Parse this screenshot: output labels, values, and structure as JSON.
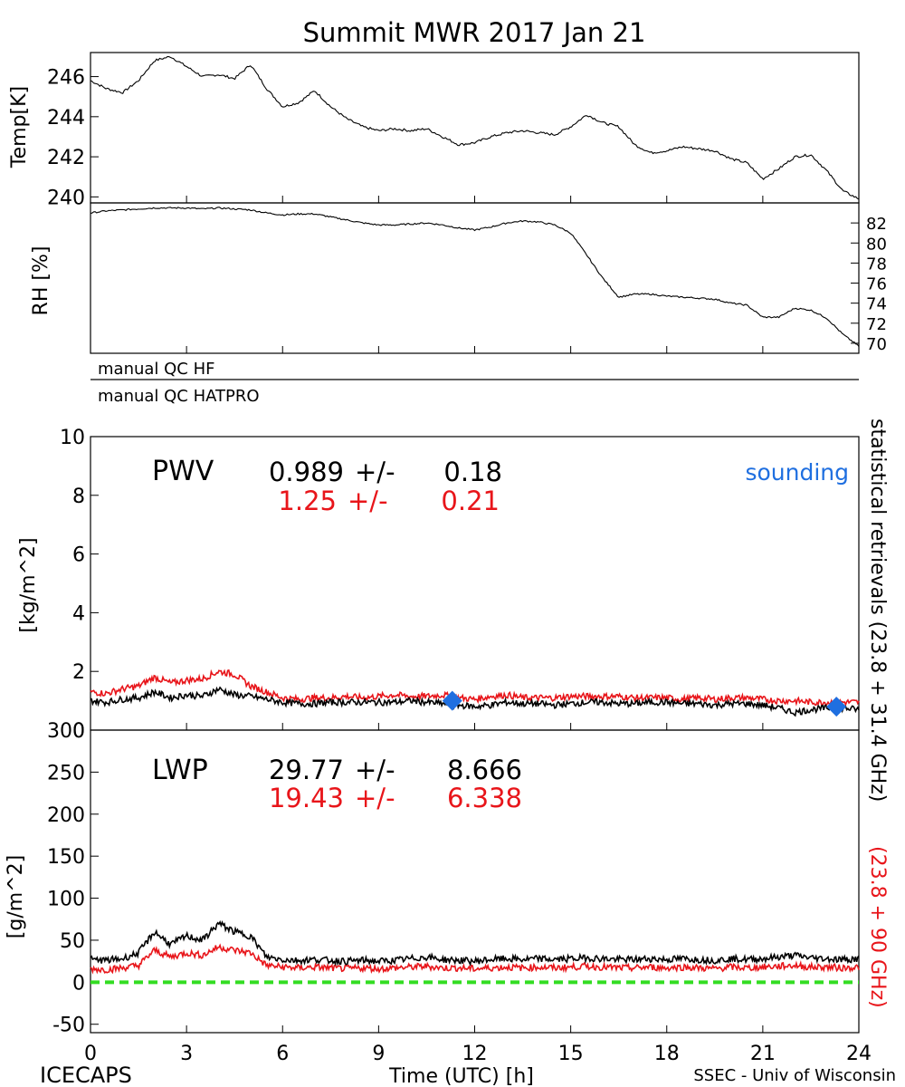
{
  "title": "Summit MWR 2017 Jan 21",
  "footer": {
    "left": "ICECAPS",
    "right": "SSEC - Univ of Wisconsin",
    "xlabel": "Time (UTC) [h]"
  },
  "colors": {
    "black": "#000000",
    "red": "#e8151a",
    "blue": "#1f6fe0",
    "green": "#33dd22"
  },
  "chart_data": [
    {
      "type": "line",
      "name": "temperature",
      "ylabel": "Temp[K]",
      "ylim": [
        239.7,
        247.2
      ],
      "yticks": [
        "240",
        "242",
        "244",
        "246"
      ],
      "x": [
        0,
        0.5,
        1,
        1.5,
        2,
        2.5,
        3,
        3.5,
        4,
        4.5,
        5,
        5.5,
        6,
        6.5,
        7,
        7.5,
        8,
        8.5,
        9,
        9.5,
        10,
        10.5,
        11,
        11.5,
        12,
        12.5,
        13,
        13.5,
        14,
        14.5,
        15,
        15.5,
        16,
        16.5,
        17,
        17.5,
        18,
        18.5,
        19,
        19.5,
        20,
        20.5,
        21,
        21.5,
        22,
        22.5,
        23,
        23.5,
        24
      ],
      "values": [
        245.8,
        245.4,
        245.2,
        245.8,
        246.8,
        247.0,
        246.5,
        246.0,
        246.1,
        245.9,
        246.6,
        245.4,
        244.5,
        244.7,
        245.3,
        244.5,
        243.9,
        243.5,
        243.3,
        243.4,
        243.3,
        243.4,
        243.0,
        242.6,
        242.7,
        243.0,
        243.2,
        243.3,
        243.2,
        243.1,
        243.5,
        244.1,
        243.7,
        243.5,
        242.6,
        242.2,
        242.3,
        242.5,
        242.4,
        242.3,
        241.9,
        241.7,
        240.9,
        241.4,
        242.0,
        242.1,
        241.3,
        240.3,
        239.9
      ]
    },
    {
      "type": "line",
      "name": "relative-humidity",
      "ylabel": "RH [%]",
      "ylim": [
        69.0,
        84.0
      ],
      "yticks": [
        "70",
        "72",
        "74",
        "76",
        "78",
        "80",
        "82"
      ],
      "x": [
        0,
        0.5,
        1,
        1.5,
        2,
        2.5,
        3,
        3.5,
        4,
        4.5,
        5,
        5.5,
        6,
        6.5,
        7,
        7.5,
        8,
        8.5,
        9,
        9.5,
        10,
        10.5,
        11,
        11.5,
        12,
        12.5,
        13,
        13.5,
        14,
        14.5,
        15,
        15.5,
        16,
        16.5,
        17,
        17.5,
        18,
        18.5,
        19,
        19.5,
        20,
        20.5,
        21,
        21.5,
        22,
        22.5,
        23,
        23.5,
        24
      ],
      "values": [
        83.0,
        83.2,
        83.3,
        83.4,
        83.5,
        83.5,
        83.5,
        83.4,
        83.5,
        83.4,
        83.3,
        83.0,
        82.8,
        82.9,
        82.9,
        82.6,
        82.3,
        82.0,
        81.8,
        81.8,
        81.9,
        82.0,
        81.8,
        81.5,
        81.3,
        81.6,
        82.0,
        82.2,
        82.1,
        81.8,
        81.0,
        78.8,
        76.5,
        74.6,
        74.9,
        74.9,
        74.7,
        74.6,
        74.5,
        74.4,
        74.0,
        73.8,
        72.6,
        72.6,
        73.5,
        73.3,
        72.5,
        70.9,
        69.7
      ]
    },
    {
      "type": "line",
      "name": "precipitable-water-vapor",
      "label": "PWV",
      "ylabel": "[kg/m^2]",
      "ylim": [
        0,
        10
      ],
      "yticks": [
        "0",
        "2",
        "4",
        "6",
        "8",
        "10"
      ],
      "stats": [
        {
          "mean": "0.989",
          "pm": "+/-",
          "std": "0.18",
          "color": "#000000"
        },
        {
          "mean": "1.25",
          "pm": "+/-",
          "std": "0.21",
          "color": "#e8151a"
        }
      ],
      "sounding_label": "sounding",
      "sounding_points": [
        {
          "x": 11.3,
          "y": 1.0
        },
        {
          "x": 23.3,
          "y": 0.8
        }
      ],
      "x": [
        0,
        0.5,
        1,
        1.5,
        2,
        2.5,
        3,
        3.5,
        4,
        4.5,
        5,
        5.5,
        6,
        6.5,
        7,
        7.5,
        8,
        8.5,
        9,
        9.5,
        10,
        10.5,
        11,
        11.5,
        12,
        12.5,
        13,
        13.5,
        14,
        14.5,
        15,
        15.5,
        16,
        16.5,
        17,
        17.5,
        18,
        18.5,
        19,
        19.5,
        20,
        20.5,
        21,
        21.5,
        22,
        22.5,
        23,
        23.5,
        24
      ],
      "series": [
        {
          "color": "#000000",
          "values": [
            1.0,
            0.95,
            1.05,
            1.1,
            1.3,
            1.1,
            1.2,
            1.15,
            1.4,
            1.2,
            1.15,
            1.05,
            0.95,
            0.9,
            0.9,
            0.95,
            0.95,
            0.95,
            0.95,
            0.95,
            1.0,
            0.95,
            0.9,
            0.85,
            0.8,
            0.85,
            0.95,
            0.9,
            0.9,
            0.85,
            0.9,
            0.95,
            0.95,
            0.9,
            0.9,
            0.95,
            0.95,
            0.9,
            0.9,
            0.85,
            0.9,
            0.9,
            0.85,
            0.75,
            0.6,
            0.7,
            0.75,
            0.75,
            0.7
          ]
        },
        {
          "color": "#e8151a",
          "values": [
            1.3,
            1.25,
            1.4,
            1.5,
            1.8,
            1.6,
            1.7,
            1.75,
            2.0,
            1.9,
            1.5,
            1.3,
            1.1,
            1.05,
            1.1,
            1.1,
            1.15,
            1.1,
            1.15,
            1.2,
            1.15,
            1.15,
            1.2,
            1.1,
            1.05,
            1.15,
            1.2,
            1.1,
            1.1,
            1.1,
            1.15,
            1.15,
            1.15,
            1.15,
            1.1,
            1.1,
            1.1,
            1.05,
            1.1,
            1.05,
            1.1,
            1.1,
            1.05,
            1.0,
            1.0,
            0.95,
            0.95,
            0.95,
            0.95
          ]
        }
      ]
    },
    {
      "type": "line",
      "name": "liquid-water-path",
      "label": "LWP",
      "ylabel": "[g/m^2]",
      "ylim": [
        -60,
        300
      ],
      "yticks": [
        "-50",
        "0",
        "50",
        "100",
        "150",
        "200",
        "250",
        "300"
      ],
      "stats": [
        {
          "mean": "29.77",
          "pm": "+/-",
          "std": "8.666",
          "color": "#000000"
        },
        {
          "mean": "19.43",
          "pm": "+/-",
          "std": "6.338",
          "color": "#e8151a"
        }
      ],
      "zero_line_color": "#33dd22",
      "x": [
        0,
        0.5,
        1,
        1.5,
        2,
        2.5,
        3,
        3.5,
        4,
        4.5,
        5,
        5.5,
        6,
        6.5,
        7,
        7.5,
        8,
        8.5,
        9,
        9.5,
        10,
        10.5,
        11,
        11.5,
        12,
        12.5,
        13,
        13.5,
        14,
        14.5,
        15,
        15.5,
        16,
        16.5,
        17,
        17.5,
        18,
        18.5,
        19,
        19.5,
        20,
        20.5,
        21,
        21.5,
        22,
        22.5,
        23,
        23.5,
        24
      ],
      "series": [
        {
          "color": "#000000",
          "values": [
            27,
            26,
            28,
            35,
            60,
            45,
            55,
            50,
            70,
            60,
            55,
            30,
            27,
            26,
            27,
            26,
            25,
            26,
            25,
            26,
            28,
            30,
            27,
            26,
            25,
            27,
            28,
            27,
            28,
            27,
            28,
            29,
            28,
            27,
            27,
            28,
            27,
            28,
            27,
            26,
            28,
            27,
            28,
            30,
            32,
            29,
            28,
            27,
            28
          ]
        },
        {
          "color": "#e8151a",
          "values": [
            16,
            15,
            17,
            20,
            38,
            30,
            35,
            32,
            42,
            38,
            35,
            20,
            18,
            17,
            18,
            17,
            16,
            17,
            16,
            17,
            18,
            19,
            17,
            17,
            16,
            17,
            18,
            17,
            18,
            17,
            18,
            19,
            18,
            17,
            17,
            18,
            17,
            18,
            17,
            16,
            18,
            17,
            18,
            19,
            20,
            18,
            18,
            17,
            18
          ]
        }
      ]
    }
  ],
  "time_axis": {
    "xlim": [
      0,
      24
    ],
    "ticks": [
      "0",
      "3",
      "6",
      "9",
      "12",
      "15",
      "18",
      "21",
      "24"
    ]
  },
  "qc": {
    "hf": "manual QC HF",
    "hatpro": "manual QC HATPRO"
  },
  "right_labels": {
    "black": "statistical retrievals (23.8 + 31.4 GHz)",
    "red": "(23.8 + 90 GHz)"
  }
}
